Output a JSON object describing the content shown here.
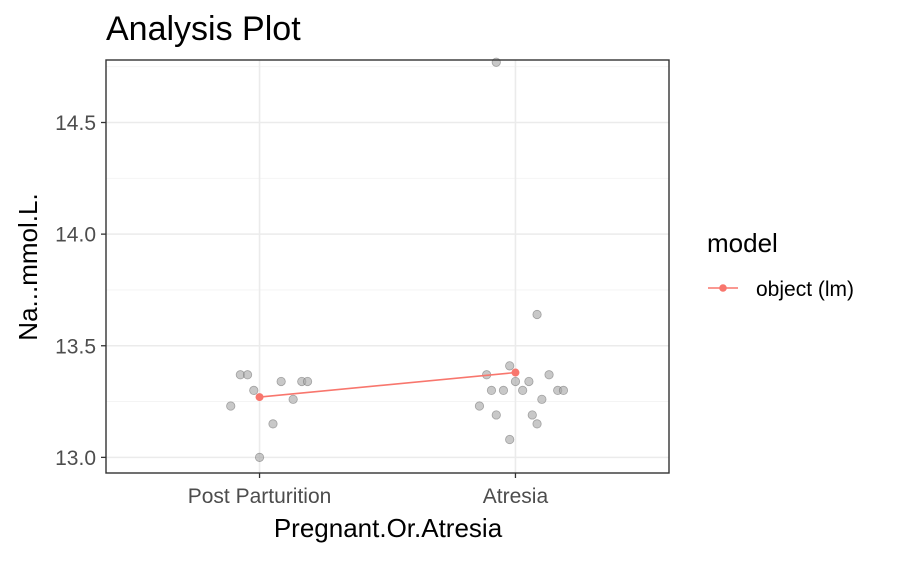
{
  "chart_data": {
    "type": "scatter",
    "title": "Analysis Plot",
    "xlabel": "Pregnant.Or.Atresia",
    "ylabel": "Na...mmol.L.",
    "categories": [
      "Post Parturition",
      "Atresia"
    ],
    "ylim": [
      12.93,
      14.78
    ],
    "y_ticks": [
      13.0,
      13.5,
      14.0,
      14.5
    ],
    "y_tick_labels": [
      "13.0",
      "13.5",
      "14.0",
      "14.5"
    ],
    "grid": true,
    "legend": {
      "title": "model",
      "position": "right",
      "entries": [
        {
          "label": "object (lm)",
          "color": "#f8766d"
        }
      ]
    },
    "points": [
      {
        "category": "Post Parturition",
        "y": 13.37
      },
      {
        "category": "Post Parturition",
        "y": 13.34
      },
      {
        "category": "Post Parturition",
        "y": 13.3
      },
      {
        "category": "Post Parturition",
        "y": 13.26
      },
      {
        "category": "Post Parturition",
        "y": 13.23
      },
      {
        "category": "Post Parturition",
        "y": 13.15
      },
      {
        "category": "Post Parturition",
        "y": 13.0
      },
      {
        "category": "Post Parturition",
        "y": 13.34
      },
      {
        "category": "Post Parturition",
        "y": 13.37
      },
      {
        "category": "Post Parturition",
        "y": 13.34
      },
      {
        "category": "Atresia",
        "y": 14.77
      },
      {
        "category": "Atresia",
        "y": 13.64
      },
      {
        "category": "Atresia",
        "y": 13.41
      },
      {
        "category": "Atresia",
        "y": 13.37
      },
      {
        "category": "Atresia",
        "y": 13.37
      },
      {
        "category": "Atresia",
        "y": 13.34
      },
      {
        "category": "Atresia",
        "y": 13.34
      },
      {
        "category": "Atresia",
        "y": 13.3
      },
      {
        "category": "Atresia",
        "y": 13.3
      },
      {
        "category": "Atresia",
        "y": 13.3
      },
      {
        "category": "Atresia",
        "y": 13.3
      },
      {
        "category": "Atresia",
        "y": 13.3
      },
      {
        "category": "Atresia",
        "y": 13.26
      },
      {
        "category": "Atresia",
        "y": 13.23
      },
      {
        "category": "Atresia",
        "y": 13.19
      },
      {
        "category": "Atresia",
        "y": 13.19
      },
      {
        "category": "Atresia",
        "y": 13.15
      },
      {
        "category": "Atresia",
        "y": 13.08
      }
    ],
    "model_series": {
      "name": "object (lm)",
      "color": "#f8766d",
      "values": [
        {
          "category": "Post Parturition",
          "y": 13.27
        },
        {
          "category": "Atresia",
          "y": 13.38
        }
      ]
    }
  }
}
